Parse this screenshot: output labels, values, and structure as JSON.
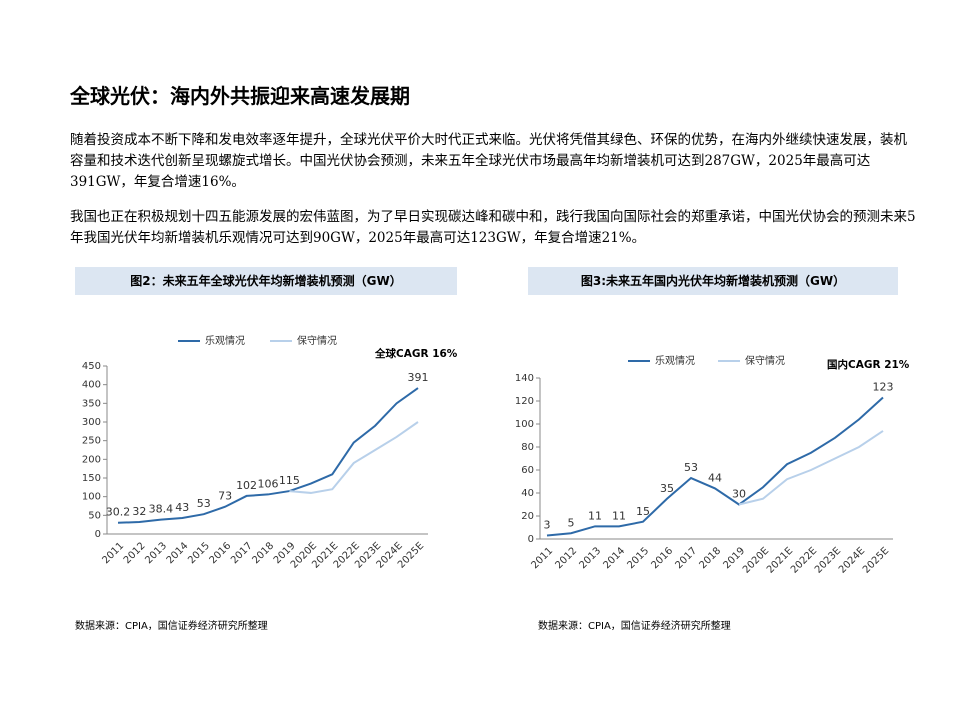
{
  "page_title": "全球光伏：海内外共振迎来高速发展期",
  "paragraphs": [
    "随着投资成本不断下降和发电效率逐年提升，全球光伏平价大时代正式来临。光伏将凭借其绿色、环保的优势，在海内外继续快速发展，装机容量和技术迭代创新呈现螺旋式增长。中国光伏协会预测，未来五年全球光伏市场最高年均新增装机可达到287GW，2025年最高可达391GW，年复合增速16%。",
    "我国也正在积极规划十四五能源发展的宏伟蓝图，为了早日实现碳达峰和碳中和，践行我国向国际社会的郑重承诺，中国光伏协会的预测未来5年我国光伏年均新增装机乐观情况可达到90GW，2025年最高可达123GW，年复合增速21%。"
  ],
  "chart_data": [
    {
      "type": "line",
      "title": "图2：未来五年全球光伏年均新增装机预测（GW）",
      "annotation": "全球CAGR 16%",
      "source": "数据来源：CPIA，国信证券经济研究所整理",
      "categories": [
        "2011",
        "2012",
        "2013",
        "2014",
        "2015",
        "2016",
        "2017",
        "2018",
        "2019",
        "2020E",
        "2021E",
        "2022E",
        "2023E",
        "2024E",
        "2025E"
      ],
      "series": [
        {
          "name": "乐观情况",
          "color": "#2e6aa8",
          "values": [
            30.2,
            32,
            38.4,
            43,
            53,
            73,
            102,
            106,
            115,
            135,
            160,
            245,
            290,
            350,
            391
          ],
          "value_labels": [
            "30.2",
            "32",
            "38.4",
            "43",
            "53",
            "73",
            "102",
            "106",
            "115",
            null,
            null,
            null,
            null,
            null,
            "391"
          ]
        },
        {
          "name": "保守情况",
          "color": "#b8d0ea",
          "values": [
            null,
            null,
            null,
            null,
            null,
            null,
            null,
            null,
            115,
            110,
            120,
            190,
            225,
            260,
            300
          ]
        }
      ],
      "ylim": [
        0,
        450
      ],
      "yticks": [
        0,
        50,
        100,
        150,
        200,
        250,
        300,
        350,
        400,
        450
      ]
    },
    {
      "type": "line",
      "title": "图3:未来五年国内光伏年均新增装机预测（GW）",
      "annotation": "国内CAGR 21%",
      "source": "数据来源：CPIA，国信证券经济研究所整理",
      "categories": [
        "2011",
        "2012",
        "2013",
        "2014",
        "2015",
        "2016",
        "2017",
        "2018",
        "2019",
        "2020E",
        "2021E",
        "2022E",
        "2023E",
        "2024E",
        "2025E"
      ],
      "series": [
        {
          "name": "乐观情况",
          "color": "#2e6aa8",
          "values": [
            3,
            5,
            11,
            11,
            15,
            35,
            53,
            44,
            30,
            45,
            65,
            75,
            88,
            104,
            123
          ],
          "value_labels": [
            "3",
            "5",
            "11",
            "11",
            "15",
            "35",
            "53",
            "44",
            "30",
            null,
            null,
            null,
            null,
            null,
            "123"
          ]
        },
        {
          "name": "保守情况",
          "color": "#b8d0ea",
          "values": [
            null,
            null,
            null,
            null,
            null,
            null,
            null,
            null,
            30,
            35,
            52,
            60,
            70,
            80,
            94
          ]
        }
      ],
      "ylim": [
        0,
        140
      ],
      "yticks": [
        0,
        20,
        40,
        60,
        80,
        100,
        120,
        140
      ]
    }
  ]
}
